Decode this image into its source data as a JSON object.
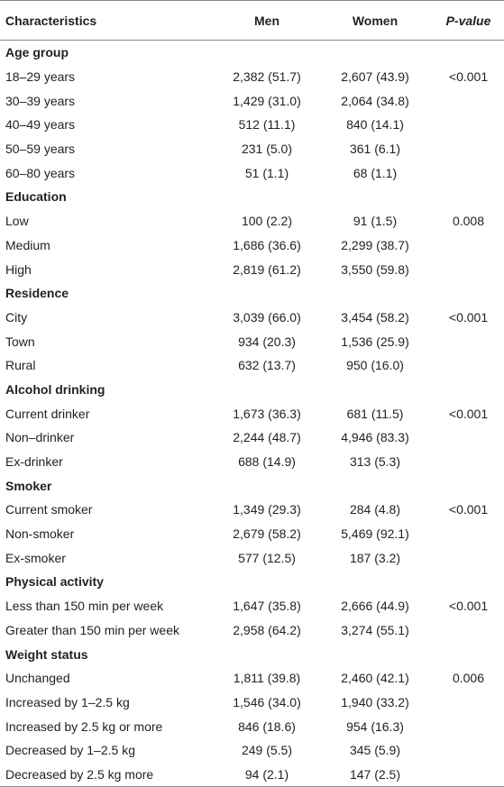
{
  "table": {
    "header": [
      "Characteristics",
      "Men",
      "Women",
      "P-value"
    ],
    "sections": [
      {
        "title": "Age group",
        "p_value": "<0.001",
        "rows": [
          [
            "18–29 years",
            "2,382 (51.7)",
            "2,607 (43.9)"
          ],
          [
            "30–39 years",
            "1,429 (31.0)",
            "2,064 (34.8)"
          ],
          [
            "40–49 years",
            "512 (11.1)",
            "840 (14.1)"
          ],
          [
            "50–59 years",
            "231 (5.0)",
            "361 (6.1)"
          ],
          [
            "60–80 years",
            "51 (1.1)",
            "68 (1.1)"
          ]
        ]
      },
      {
        "title": "Education",
        "p_value": "0.008",
        "rows": [
          [
            "Low",
            "100 (2.2)",
            "91 (1.5)"
          ],
          [
            "Medium",
            "1,686 (36.6)",
            "2,299 (38.7)"
          ],
          [
            "High",
            "2,819 (61.2)",
            "3,550 (59.8)"
          ]
        ]
      },
      {
        "title": "Residence",
        "p_value": "<0.001",
        "rows": [
          [
            "City",
            "3,039 (66.0)",
            "3,454 (58.2)"
          ],
          [
            "Town",
            "934 (20.3)",
            "1,536 (25.9)"
          ],
          [
            "Rural",
            "632 (13.7)",
            "950 (16.0)"
          ]
        ]
      },
      {
        "title": "Alcohol drinking",
        "p_value": "<0.001",
        "rows": [
          [
            "Current drinker",
            "1,673 (36.3)",
            "681 (11.5)"
          ],
          [
            "Non–drinker",
            "2,244 (48.7)",
            "4,946 (83.3)"
          ],
          [
            "Ex-drinker",
            "688 (14.9)",
            "313 (5.3)"
          ]
        ]
      },
      {
        "title": "Smoker",
        "p_value": "<0.001",
        "rows": [
          [
            "Current smoker",
            "1,349 (29.3)",
            "284 (4.8)"
          ],
          [
            "Non-smoker",
            "2,679 (58.2)",
            "5,469 (92.1)"
          ],
          [
            "Ex-smoker",
            "577 (12.5)",
            "187 (3.2)"
          ]
        ]
      },
      {
        "title": "Physical activity",
        "p_value": "<0.001",
        "rows": [
          [
            "Less than 150 min per week",
            "1,647 (35.8)",
            "2,666 (44.9)"
          ],
          [
            "Greater than 150 min per week",
            "2,958 (64.2)",
            "3,274 (55.1)"
          ]
        ]
      },
      {
        "title": "Weight status",
        "p_value": "0.006",
        "rows": [
          [
            "Unchanged",
            "1,811 (39.8)",
            "2,460 (42.1)"
          ],
          [
            "Increased by 1–2.5 kg",
            "1,546 (34.0)",
            "1,940 (33.2)"
          ],
          [
            "Increased by 2.5 kg or more",
            "846 (18.6)",
            "954 (16.3)"
          ],
          [
            "Decreased by 1–2.5 kg",
            "249 (5.5)",
            "345 (5.9)"
          ],
          [
            "Decreased by 2.5 kg more",
            "94 (2.1)",
            "147 (2.5)"
          ]
        ]
      }
    ]
  }
}
